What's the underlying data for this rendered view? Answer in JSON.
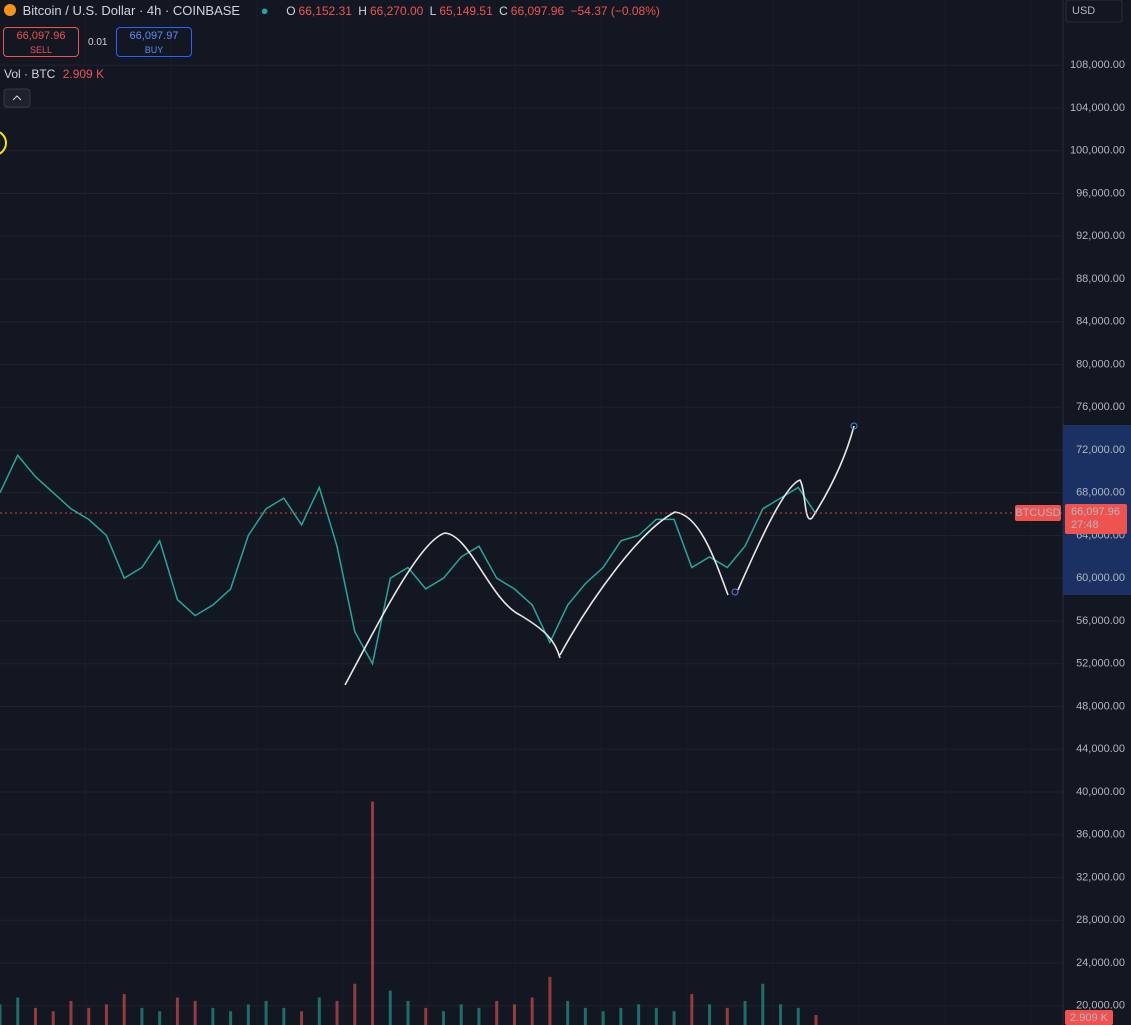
{
  "header": {
    "symbol": "Bitcoin / U.S. Dollar · 4h · COINBASE",
    "open_label": "O",
    "open": "66,152.31",
    "high_label": "H",
    "high": "66,270.00",
    "low_label": "L",
    "low": "65,149.51",
    "close_label": "C",
    "close": "66,097.96",
    "change": "−54.37 (−0.08%)",
    "currency": "USD"
  },
  "trade": {
    "sell_price": "66,097.96",
    "sell_label": "SELL",
    "spread": "0.01",
    "buy_price": "66,097.97",
    "buy_label": "BUY"
  },
  "volume_legend": {
    "label": "Vol · BTC",
    "value": "2.909 K"
  },
  "price_tag": {
    "symbol": "BTCUSD",
    "price": "66,097.96",
    "countdown": "27:48"
  },
  "chart_data": {
    "type": "line",
    "values": [
      68000,
      71500,
      69500,
      68000,
      66500,
      65500,
      64000,
      60000,
      61000,
      63500,
      58000,
      56500,
      57500,
      59000,
      64000,
      66500,
      67500,
      65000,
      68500,
      63000,
      55000,
      52000,
      60000,
      61000,
      59000,
      60000,
      62000,
      63000,
      60000,
      59000,
      57500,
      54000,
      57500,
      59500,
      61000,
      63500,
      64000,
      65500,
      65500,
      61000,
      62000,
      61000,
      63000,
      66500,
      67500,
      68500,
      66000
    ],
    "color": "#26a69a",
    "down_color": "#ef5350",
    "ylim": [
      18200,
      114100
    ],
    "yticks": [
      {
        "value": 108000,
        "label": "108,000.00"
      },
      {
        "value": 104000,
        "label": "104,000.00"
      },
      {
        "value": 100000,
        "label": "100,000.00"
      },
      {
        "value": 96000,
        "label": "96,000.00"
      },
      {
        "value": 92000,
        "label": "92,000.00"
      },
      {
        "value": 88000,
        "label": "88,000.00"
      },
      {
        "value": 84000,
        "label": "84,000.00"
      },
      {
        "value": 80000,
        "label": "80,000.00"
      },
      {
        "value": 76000,
        "label": "76,000.00"
      },
      {
        "value": 72000,
        "label": "72,000.00"
      },
      {
        "value": 68000,
        "label": "68,000.00"
      },
      {
        "value": 64000,
        "label": "64,000.00"
      },
      {
        "value": 60000,
        "label": "60,000.00"
      },
      {
        "value": 56000,
        "label": "56,000.00"
      },
      {
        "value": 52000,
        "label": "52,000.00"
      },
      {
        "value": 48000,
        "label": "48,000.00"
      },
      {
        "value": 44000,
        "label": "44,000.00"
      },
      {
        "value": 40000,
        "label": "40,000.00"
      },
      {
        "value": 36000,
        "label": "36,000.00"
      },
      {
        "value": 32000,
        "label": "32,000.00"
      },
      {
        "value": 28000,
        "label": "28,000.00"
      },
      {
        "value": 24000,
        "label": "24,000.00"
      },
      {
        "value": 20000,
        "label": "20,000.00"
      }
    ],
    "last_price": 66097.96,
    "volume": [
      6,
      8,
      5,
      4,
      7,
      5,
      6,
      9,
      5,
      4,
      8,
      7,
      5,
      4,
      6,
      7,
      5,
      4,
      8,
      7,
      12,
      65,
      10,
      7,
      5,
      4,
      6,
      5,
      7,
      6,
      8,
      14,
      7,
      5,
      4,
      5,
      6,
      5,
      4,
      9,
      6,
      5,
      7,
      12,
      6,
      5,
      2.909
    ],
    "y2lim": [
      0,
      80
    ],
    "grid": true
  }
}
